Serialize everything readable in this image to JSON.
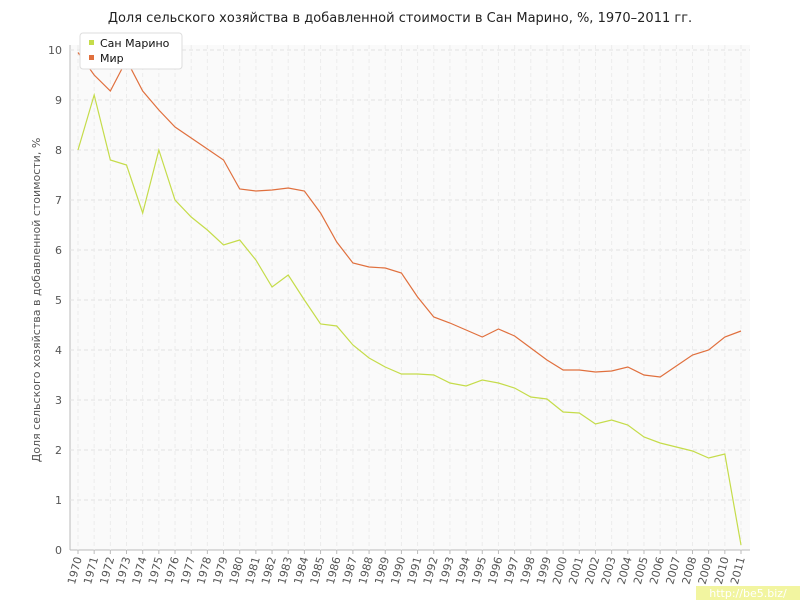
{
  "chart_data": {
    "type": "line",
    "title": "Доля сельского хозяйства в добавленной стоимости в Сан Марино, %, 1970–2011 гг.",
    "y_label": "Доля сельского хозяйства в добавленной стоимости, %",
    "categories": [
      "1970",
      "1971",
      "1972",
      "1973",
      "1974",
      "1975",
      "1976",
      "1977",
      "1978",
      "1979",
      "1980",
      "1981",
      "1982",
      "1983",
      "1984",
      "1985",
      "1986",
      "1987",
      "1988",
      "1989",
      "1990",
      "1991",
      "1992",
      "1993",
      "1994",
      "1995",
      "1996",
      "1997",
      "1998",
      "1999",
      "2000",
      "2001",
      "2002",
      "2003",
      "2004",
      "2005",
      "2006",
      "2007",
      "2008",
      "2009",
      "2010",
      "2011"
    ],
    "series": [
      {
        "name": "Сан Марино",
        "color": "#c5dc4a",
        "values": [
          8.0,
          9.1,
          7.8,
          7.7,
          6.74,
          8.0,
          7.0,
          6.66,
          6.4,
          6.1,
          6.2,
          5.8,
          5.26,
          5.5,
          5.0,
          4.52,
          4.48,
          4.1,
          3.84,
          3.66,
          3.52,
          3.52,
          3.5,
          3.34,
          3.28,
          3.4,
          3.34,
          3.24,
          3.06,
          3.02,
          2.76,
          2.74,
          2.52,
          2.6,
          2.5,
          2.26,
          2.14,
          2.06,
          1.98,
          1.84,
          1.92,
          0.1
        ]
      },
      {
        "name": "Мир",
        "color": "#e0703e",
        "values": [
          9.95,
          9.5,
          9.18,
          9.8,
          9.18,
          8.8,
          8.46,
          8.24,
          8.02,
          7.8,
          7.22,
          7.18,
          7.2,
          7.24,
          7.18,
          6.74,
          6.16,
          5.74,
          5.66,
          5.64,
          5.54,
          5.06,
          4.66,
          4.54,
          4.4,
          4.26,
          4.42,
          4.28,
          4.04,
          3.8,
          3.6,
          3.6,
          3.56,
          3.58,
          3.66,
          3.5,
          3.46,
          3.68,
          3.9,
          4.0,
          4.26,
          4.38
        ]
      }
    ],
    "ylim": [
      0,
      10
    ],
    "yticks": [
      0,
      1,
      2,
      3,
      4,
      5,
      6,
      7,
      8,
      9,
      10
    ],
    "grid": true,
    "legend": "top-left",
    "watermark": "http://be5.biz/"
  }
}
